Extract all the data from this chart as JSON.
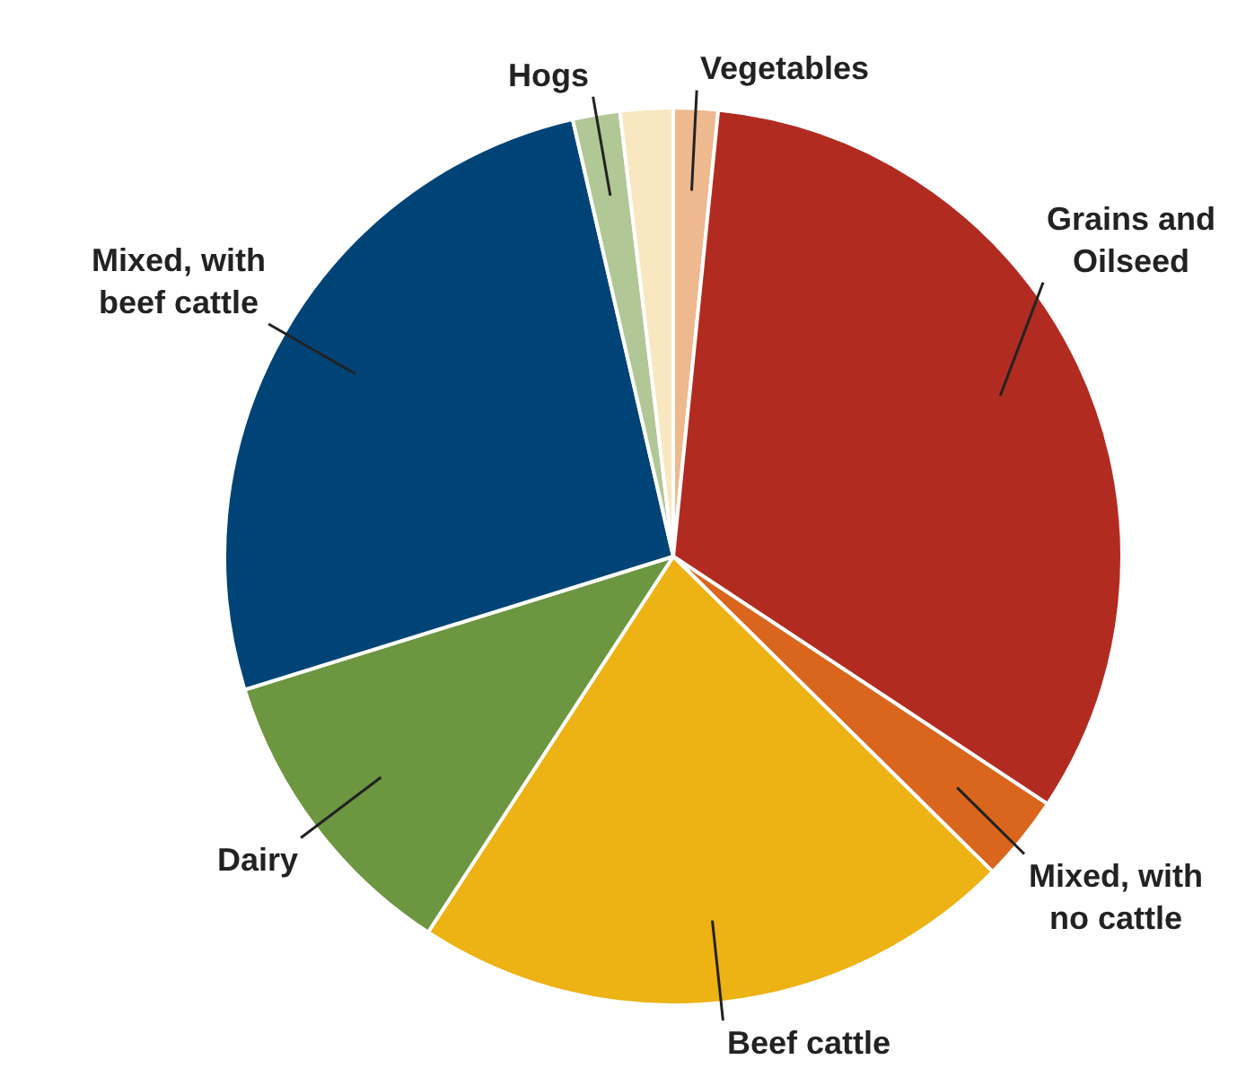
{
  "chart_data": {
    "type": "pie",
    "categories": [
      "Vegetables",
      "Grains and Oilseed",
      "Mixed, with no cattle",
      "Beef cattle",
      "Dairy",
      "Mixed, with beef cattle",
      "Hogs",
      null
    ],
    "values": [
      1.6,
      32.7,
      3.1,
      21.8,
      11.0,
      26.2,
      1.7,
      1.9
    ],
    "colors": [
      "#eeb98e",
      "#b22b21",
      "#d9661c",
      "#edb213",
      "#6c9640",
      "#004477",
      "#b1c796",
      "#f8e7c0"
    ],
    "legend": false
  }
}
